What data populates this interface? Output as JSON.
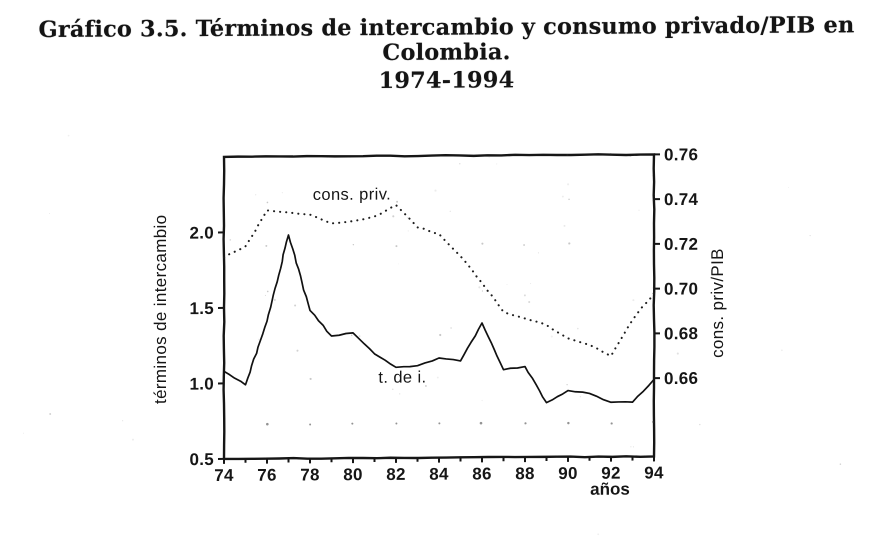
{
  "title": {
    "line1": "Gráfico 3.5. Términos de intercambio y consumo privado/PIB en",
    "line2": "Colombia.",
    "line3": "1974-1994"
  },
  "colors": {
    "ink": "#161616",
    "paper": "#ffffff"
  },
  "chart_data": {
    "type": "line",
    "title": "Gráfico 3.5. Términos de intercambio y consumo privado/PIB en Colombia. 1974-1994",
    "xlabel": "años",
    "ylabel_left": "términos de intercambio",
    "ylabel_right": "cons. priv/PIB",
    "x": [
      74,
      75,
      76,
      77,
      78,
      79,
      80,
      81,
      82,
      83,
      84,
      85,
      86,
      87,
      88,
      89,
      90,
      91,
      92,
      93,
      94
    ],
    "series": [
      {
        "name": "t. de i.",
        "axis": "left",
        "style": "solid",
        "values": [
          1.08,
          0.99,
          1.41,
          1.98,
          1.48,
          1.31,
          1.33,
          1.19,
          1.1,
          1.11,
          1.16,
          1.14,
          1.39,
          1.08,
          1.1,
          0.86,
          0.94,
          0.92,
          0.86,
          0.86,
          1.01
        ]
      },
      {
        "name": "cons. priv.",
        "axis": "right",
        "style": "dotted",
        "values": [
          0.715,
          0.72,
          0.736,
          0.735,
          0.734,
          0.73,
          0.731,
          0.733,
          0.738,
          0.728,
          0.725,
          0.715,
          0.703,
          0.69,
          0.687,
          0.684,
          0.678,
          0.675,
          0.67,
          0.686,
          0.698
        ]
      }
    ],
    "xlim": [
      74,
      94
    ],
    "ylim_left": [
      0.5,
      2.5
    ],
    "ylim_right": [
      0.625,
      0.76
    ],
    "x_tick_labels": [
      "74",
      "76",
      "78",
      "80",
      "82",
      "84",
      "86",
      "88",
      "90",
      "92",
      "94"
    ],
    "x_tick_values": [
      74,
      76,
      78,
      80,
      82,
      84,
      86,
      88,
      90,
      92,
      94
    ],
    "x_minor_step": 1,
    "left_tick_labels": [
      "0.5",
      "1.0",
      "1.5",
      "2.0"
    ],
    "left_tick_values": [
      0.5,
      1.0,
      1.5,
      2.0
    ],
    "right_tick_labels": [
      "0.66",
      "0.68",
      "0.70",
      "0.72",
      "0.74",
      "0.76"
    ],
    "right_tick_values": [
      0.66,
      0.68,
      0.7,
      0.72,
      0.74,
      0.76
    ],
    "grid": {
      "style": "dots",
      "dot_row_right_value": 0.64,
      "dot_col_years": [
        76,
        78,
        80,
        82,
        84,
        86,
        88,
        90,
        92,
        94
      ]
    },
    "annotations": [
      {
        "text": "cons. priv.",
        "series": "cons. priv.",
        "axis": "right",
        "x": 79.95,
        "y": 0.743
      },
      {
        "text": "t. de i.",
        "series": "t. de i.",
        "axis": "left",
        "x": 82.3,
        "y": 1.035
      }
    ],
    "legend": "inline-labels"
  }
}
